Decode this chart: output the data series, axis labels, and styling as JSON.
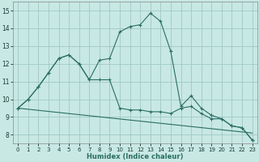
{
  "xlabel": "Humidex (Indice chaleur)",
  "xlim": [
    -0.5,
    23.5
  ],
  "ylim": [
    7.5,
    15.5
  ],
  "xticks": [
    0,
    1,
    2,
    3,
    4,
    5,
    6,
    7,
    8,
    9,
    10,
    11,
    12,
    13,
    14,
    15,
    16,
    17,
    18,
    19,
    20,
    21,
    22,
    23
  ],
  "yticks": [
    8,
    9,
    10,
    11,
    12,
    13,
    14,
    15
  ],
  "background_color": "#c8e8e4",
  "grid_color": "#a0c8c4",
  "line_color": "#2a6e62",
  "line1_x": [
    0,
    1,
    2,
    3,
    4,
    5,
    6,
    7,
    8,
    9,
    10,
    11,
    12,
    13,
    14,
    15,
    16,
    17,
    18,
    19,
    20,
    21,
    22,
    23
  ],
  "line1_y": [
    9.5,
    10.0,
    10.7,
    11.5,
    12.3,
    12.5,
    12.0,
    11.1,
    11.1,
    11.1,
    9.5,
    9.4,
    9.4,
    9.3,
    9.3,
    9.2,
    9.5,
    9.6,
    9.2,
    8.9,
    8.9,
    8.5,
    8.4,
    7.7
  ],
  "line2_x": [
    0,
    1,
    2,
    3,
    4,
    5,
    6,
    7,
    8,
    9,
    10,
    11,
    12,
    13,
    14,
    15,
    16,
    17,
    18,
    19,
    20,
    21,
    22,
    23
  ],
  "line2_y": [
    9.5,
    10.0,
    10.7,
    11.5,
    12.3,
    12.5,
    12.0,
    11.1,
    12.2,
    12.3,
    13.8,
    14.1,
    14.2,
    14.85,
    14.4,
    12.7,
    9.6,
    10.2,
    9.5,
    9.1,
    8.9,
    8.5,
    8.4,
    7.7
  ],
  "line3_x": [
    0,
    23
  ],
  "line3_y": [
    9.5,
    8.1
  ]
}
